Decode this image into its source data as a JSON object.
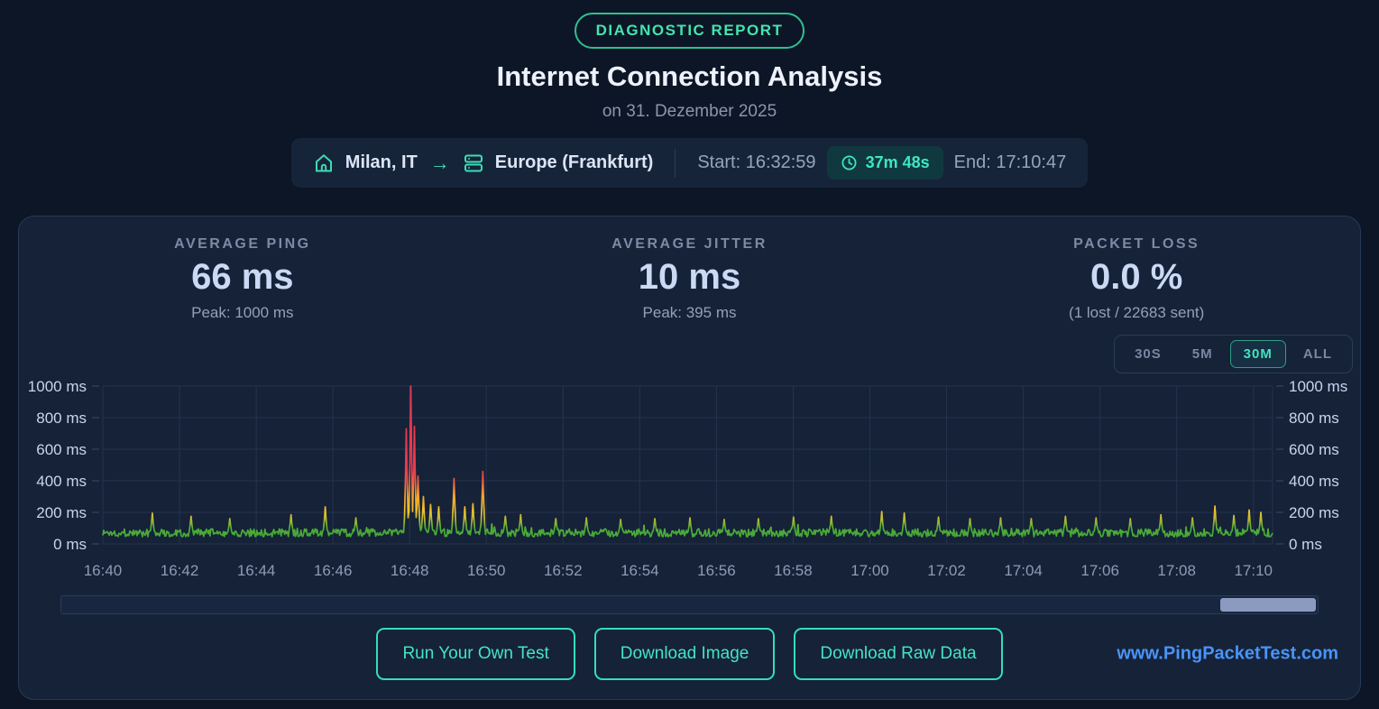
{
  "page": {
    "badge": "DIAGNOSTIC REPORT",
    "title": "Internet Connection Analysis",
    "subtitle": "on 31. Dezember 2025"
  },
  "info_bar": {
    "source": "Milan, IT",
    "arrow": "→",
    "destination": "Europe (Frankfurt)",
    "start_label": "Start:",
    "start_time": "16:32:59",
    "duration": "37m 48s",
    "end_label": "End:",
    "end_time": "17:10:47"
  },
  "stats": {
    "ping": {
      "label": "AVERAGE PING",
      "value": "66 ms",
      "peak": "Peak: 1000 ms"
    },
    "jitter": {
      "label": "AVERAGE JITTER",
      "value": "10 ms",
      "peak": "Peak: 395 ms"
    },
    "loss": {
      "label": "PACKET LOSS",
      "value": "0.0 %",
      "detail": "(1 lost / 22683 sent)"
    }
  },
  "range_selector": {
    "options": [
      "30S",
      "5M",
      "30M",
      "ALL"
    ],
    "active": "30M"
  },
  "chart_data": {
    "type": "line",
    "title": "Ping latency over time",
    "ylabel": "ms",
    "ylim": [
      0,
      1000
    ],
    "y_ticks": [
      0,
      200,
      400,
      600,
      800,
      1000
    ],
    "y_tick_suffix": " ms",
    "x_ticks": [
      "16:40",
      "16:42",
      "16:44",
      "16:46",
      "16:48",
      "16:50",
      "16:52",
      "16:54",
      "16:56",
      "16:58",
      "17:00",
      "17:02",
      "17:04",
      "17:06",
      "17:08",
      "17:10"
    ],
    "x_minutes_span": 30.5,
    "grid": true,
    "legend": "none",
    "baseline_ms": {
      "mean": 66,
      "min": 45,
      "max": 96
    },
    "spikes_min_value": [
      [
        1.3,
        195
      ],
      [
        2.3,
        175
      ],
      [
        3.3,
        160
      ],
      [
        4.9,
        185
      ],
      [
        5.8,
        235
      ],
      [
        6.6,
        165
      ],
      [
        7.92,
        730
      ],
      [
        8.02,
        1000
      ],
      [
        8.12,
        745
      ],
      [
        8.22,
        430
      ],
      [
        8.35,
        300
      ],
      [
        8.55,
        250
      ],
      [
        8.75,
        235
      ],
      [
        9.15,
        415
      ],
      [
        9.45,
        235
      ],
      [
        9.65,
        255
      ],
      [
        9.9,
        460
      ],
      [
        10.5,
        175
      ],
      [
        10.9,
        185
      ],
      [
        11.8,
        160
      ],
      [
        12.6,
        165
      ],
      [
        13.5,
        155
      ],
      [
        14.4,
        160
      ],
      [
        15.3,
        165
      ],
      [
        16.2,
        155
      ],
      [
        17.1,
        160
      ],
      [
        18.0,
        170
      ],
      [
        19.0,
        175
      ],
      [
        20.3,
        205
      ],
      [
        20.9,
        195
      ],
      [
        21.8,
        170
      ],
      [
        22.6,
        160
      ],
      [
        23.4,
        165
      ],
      [
        24.2,
        160
      ],
      [
        25.1,
        175
      ],
      [
        25.9,
        165
      ],
      [
        26.8,
        160
      ],
      [
        27.6,
        185
      ],
      [
        28.4,
        165
      ],
      [
        29.0,
        240
      ],
      [
        29.5,
        180
      ],
      [
        29.9,
        215
      ],
      [
        30.2,
        200
      ]
    ],
    "color_stops": [
      [
        0.0,
        "#3da23b"
      ],
      [
        0.1,
        "#4fae36"
      ],
      [
        0.155,
        "#b8b931"
      ],
      [
        0.21,
        "#f2c12e"
      ],
      [
        0.3,
        "#f2a52d"
      ],
      [
        0.4,
        "#ed5b40"
      ],
      [
        0.48,
        "#e63a50"
      ],
      [
        1.0,
        "#e63a50"
      ]
    ],
    "render_seed": 1337,
    "point_count": 1300
  },
  "footer": {
    "buttons": [
      "Run Your Own Test",
      "Download Image",
      "Download Raw Data"
    ],
    "site_link": "www.PingPacketTest.com"
  },
  "colors": {
    "background": "#0d1626",
    "card": "#152238",
    "accent_teal": "#3fe3c0",
    "link_blue": "#4a94f7",
    "grid": "#263350",
    "green": "#3da23b",
    "yellow": "#f2c12e",
    "red": "#e63a50"
  }
}
